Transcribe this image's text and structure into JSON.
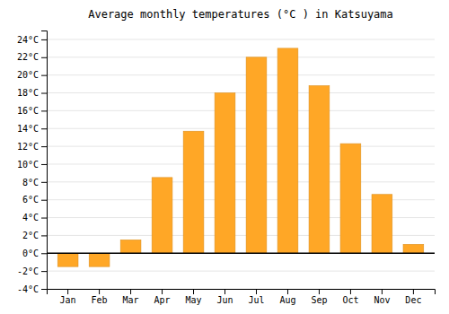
{
  "chart_data": {
    "type": "bar",
    "title": "Average monthly temperatures (°C ) in Katsuyama",
    "categories": [
      "Jan",
      "Feb",
      "Mar",
      "Apr",
      "May",
      "Jun",
      "Jul",
      "Aug",
      "Sep",
      "Oct",
      "Nov",
      "Dec"
    ],
    "values": [
      -1.5,
      -1.5,
      1.5,
      8.5,
      13.7,
      18.0,
      22.0,
      23.0,
      18.8,
      12.3,
      6.6,
      1.0
    ],
    "color": "#FFA726",
    "ylim": [
      -4,
      25
    ],
    "yticks": [
      {
        "value": -4,
        "label": "-4°C"
      },
      {
        "value": -2,
        "label": "-2°C"
      },
      {
        "value": 0,
        "label": "0°C"
      },
      {
        "value": 2,
        "label": "2°C"
      },
      {
        "value": 4,
        "label": "4°C"
      },
      {
        "value": 6,
        "label": "6°C"
      },
      {
        "value": 8,
        "label": "8°C"
      },
      {
        "value": 10,
        "label": "10°C"
      },
      {
        "value": 12,
        "label": "12°C"
      },
      {
        "value": 14,
        "label": "14°C"
      },
      {
        "value": 16,
        "label": "16°C"
      },
      {
        "value": 18,
        "label": "18°C"
      },
      {
        "value": 20,
        "label": "20°C"
      },
      {
        "value": 22,
        "label": "22°C"
      },
      {
        "value": 24,
        "label": "24°C"
      }
    ],
    "grid": true
  }
}
